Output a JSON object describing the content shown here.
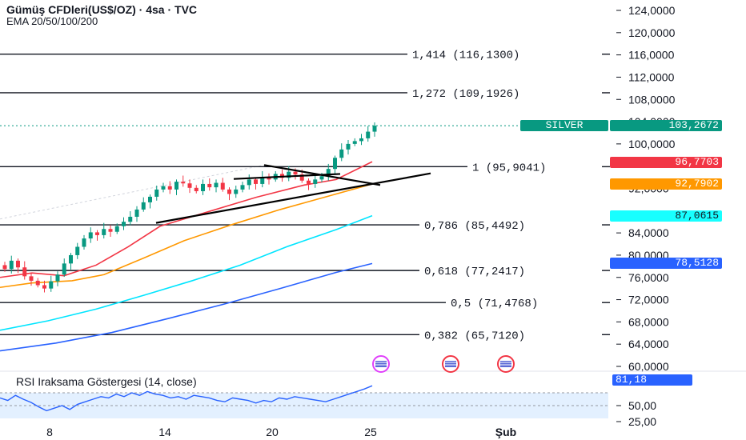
{
  "header": {
    "title": "Gümüş CFDleri(US$/OZ) · 4sa · TVC",
    "indicator": "EMA 20/50/100/200"
  },
  "price_axis": [
    "124,0000",
    "120,0000",
    "116,0000",
    "112,0000",
    "108,0000",
    "104,0000",
    "100,0000",
    "92,0000",
    "84,0000",
    "80,0000",
    "76,0000",
    "72,0000",
    "68,0000",
    "64,0000",
    "60,0000"
  ],
  "fib_levels": [
    {
      "label": "1,414 (116,1300)",
      "price": 116.13
    },
    {
      "label": "1,272 (109,1926)",
      "price": 109.1926
    },
    {
      "label": "1 (95,9041)",
      "price": 95.9041
    },
    {
      "label": "0,786 (85,4492)",
      "price": 85.4492
    },
    {
      "label": "0,618 (77,2417)",
      "price": 77.2417
    },
    {
      "label": "0,5 (71,4768)",
      "price": 71.4768
    },
    {
      "label": "0,382 (65,7120)",
      "price": 65.712
    }
  ],
  "badges": {
    "silver_name": "SILVER",
    "silver_price": "103,2672",
    "ema20": "96,7703",
    "ema50": "92,7902",
    "ema100": "87,0615",
    "ema200": "78,5128"
  },
  "colors": {
    "up": "#089981",
    "down": "#f23645",
    "ema20": "#f23645",
    "ema50": "#ff9800",
    "ema100": "#00e5ff",
    "ema200": "#2962ff",
    "rsi": "#2962ff",
    "rsi_fill": "#e3f0ff"
  },
  "rsi": {
    "title": "RSI Iraksama Göstergesi (14, close)",
    "value": "81,18",
    "axis": [
      "50,00",
      "25,00"
    ]
  },
  "time_axis": [
    "8",
    "14",
    "20",
    "25",
    "Şub"
  ],
  "chart_data": {
    "type": "candlestick",
    "closes": [
      77.5,
      79,
      77.8,
      76.2,
      75.4,
      74.6,
      74.0,
      75.3,
      76.5,
      78.5,
      80,
      81.5,
      83,
      84.1,
      83.6,
      84.7,
      84.2,
      85.2,
      86,
      86.9,
      88.2,
      89.5,
      90.5,
      91.8,
      92.4,
      91.8,
      93.2,
      92.9,
      92.1,
      91.5,
      92.8,
      92.2,
      93,
      91.8,
      91,
      91.8,
      92.6,
      93.6,
      92.8,
      94,
      93.6,
      94.6,
      93.9,
      95,
      94.5,
      93.4,
      92.8,
      93.6,
      94.2,
      95.5,
      97.5,
      99,
      100,
      100.5,
      101,
      102.2,
      103.27
    ],
    "ema_values": {
      "ema20": "96,7703",
      "ema50": "92,7902",
      "ema100": "87,0615",
      "ema200": "78,5128"
    },
    "ylim": [
      58,
      125
    ]
  }
}
